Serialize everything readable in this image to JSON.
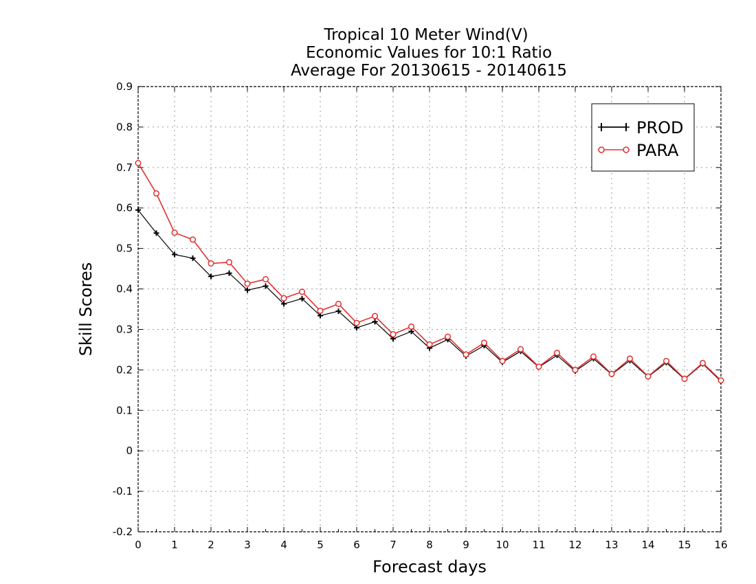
{
  "chart_data": {
    "type": "line",
    "title": [
      "Tropical 10 Meter Wind(V)",
      "Economic Values for 10:1 Ratio",
      "Average For 20130615 - 20140615"
    ],
    "xlabel": "Forecast days",
    "ylabel": "Skill Scores",
    "xlim": [
      0,
      16
    ],
    "ylim": [
      -0.2,
      0.9
    ],
    "x_ticks": [
      0,
      1,
      2,
      3,
      4,
      5,
      6,
      7,
      8,
      9,
      10,
      11,
      12,
      13,
      14,
      15,
      16
    ],
    "x_tick_labels": [
      "0",
      "1",
      "2",
      "3",
      "4",
      "5",
      "6",
      "7",
      "8",
      "9",
      "10",
      "11",
      "12",
      "13",
      "14",
      "15",
      "16"
    ],
    "y_ticks": [
      -0.2,
      -0.1,
      0,
      0.1,
      0.2,
      0.3,
      0.4,
      0.5,
      0.6,
      0.7,
      0.8,
      0.9
    ],
    "y_tick_labels": [
      "-0.2",
      "-0.1",
      "0",
      "0.1",
      "0.2",
      "0.3",
      "0.4",
      "0.5",
      "0.6",
      "0.7",
      "0.8",
      "0.9"
    ],
    "grid": true,
    "legend_position": "top-right",
    "x": [
      0,
      0.5,
      1,
      1.5,
      2,
      2.5,
      3,
      3.5,
      4,
      4.5,
      5,
      5.5,
      6,
      6.5,
      7,
      7.5,
      8,
      8.5,
      9,
      9.5,
      10,
      10.5,
      11,
      11.5,
      12,
      12.5,
      13,
      13.5,
      14,
      14.5,
      15,
      15.5,
      16
    ],
    "series": [
      {
        "name": "PROD",
        "color": "#000000",
        "marker": "plus",
        "values": [
          0.595,
          0.538,
          0.485,
          0.476,
          0.431,
          0.439,
          0.397,
          0.407,
          0.363,
          0.376,
          0.334,
          0.345,
          0.304,
          0.319,
          0.277,
          0.295,
          0.254,
          0.275,
          0.234,
          0.26,
          0.219,
          0.246,
          0.207,
          0.236,
          0.197,
          0.228,
          0.189,
          0.223,
          0.183,
          0.218,
          0.177,
          0.215,
          0.172
        ]
      },
      {
        "name": "PARA",
        "color": "#e03030",
        "marker": "circle",
        "values": [
          0.711,
          0.636,
          0.539,
          0.522,
          0.463,
          0.466,
          0.413,
          0.424,
          0.377,
          0.393,
          0.346,
          0.363,
          0.316,
          0.333,
          0.288,
          0.307,
          0.263,
          0.282,
          0.238,
          0.267,
          0.222,
          0.251,
          0.208,
          0.242,
          0.2,
          0.233,
          0.19,
          0.228,
          0.184,
          0.222,
          0.178,
          0.217,
          0.174
        ]
      }
    ]
  }
}
